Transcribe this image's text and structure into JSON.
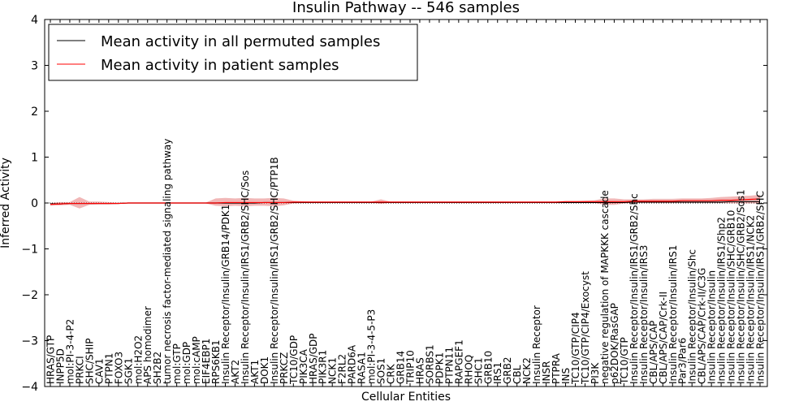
{
  "chart_data": {
    "type": "line",
    "title": "Insulin Pathway -- 546 samples",
    "xlabel": "Cellular Entities",
    "ylabel": "Inferred Activity",
    "ylim": [
      -4,
      4
    ],
    "yticks": [
      4,
      3,
      2,
      1,
      0,
      -1,
      -2,
      -3,
      -4
    ],
    "yticklabels": [
      "4",
      "3",
      "2",
      "1",
      "0",
      "−1",
      "−2",
      "−3",
      "−4"
    ],
    "grid": false,
    "legend_position": "top-left",
    "reference_line": 0,
    "categories": [
      "HRAS/GTP",
      "INPP5D",
      "mol:PI-3-4-P2",
      "PRKCI",
      "SHC/SHIP",
      "CAV1",
      "PTPN1",
      "FOXO3",
      "SGK1",
      "mol:H2O2",
      "APS homodimer",
      "SH2B2",
      "tumor necrosis factor-mediated signaling pathway",
      "mol:GTP",
      "mol:GDP",
      "mol:cAMP",
      "EIF4EBP1",
      "RPS6KB1",
      "Insulin Receptor/Insulin/GRB14/PDK1",
      "AKT2",
      "Insulin Receptor/Insulin/IRS1/GRB2/SHC/Sos",
      "AKT1",
      "DOK1",
      "Insulin Receptor/Insulin/IRS1/GRB2/SHC/PTP1B",
      "PRKCZ",
      "TC10/GDP",
      "PIK3CA",
      "HRAS/GDP",
      "PIK3R1",
      "NCK1",
      "F2RL2",
      "PARD6A",
      "RASA1",
      "mol:PI-3-4-5-P3",
      "SOS1",
      "CRK",
      "GRB14",
      "TRIP10",
      "HRAS",
      "SORBS1",
      "PDPK1",
      "PTPN11",
      "RAPGEF1",
      "RHOQ",
      "SHC1",
      "GRB10",
      "IRS1",
      "GRB2",
      "CBL",
      "NCK2",
      "Insulin Receptor",
      "INSR",
      "PTPRA",
      "INS",
      "TC10/GTP/CIP4",
      "TC10/GTP/CIP4/Exocyst",
      "PI3K",
      "negative regulation of MAPKKK cascade",
      "p62DOK/RasGAP",
      "TC10/GTP",
      "Insulin Receptor/Insulin/IRS1/GRB2/Shc",
      "Insulin Receptor/Insulin/IRS3",
      "CBL/APS/CAP",
      "CBL/APS/CAP/Crk-II",
      "Insulin Receptor/Insulin/IRS1",
      "Par3/Par6",
      "Insulin Receptor/Insulin/Shc",
      "CBL/APS/CAP/Crk-II/C3G",
      "Insulin Receptor/Insulin",
      "Insulin Receptor/Insulin/IRS1/Shp2",
      "Insulin Receptor/Insulin/SHC/GRB10",
      "Insulin Receptor/Insulin/SHC/GRB2/Sos1",
      "Insulin Receptor/Insulin/IRS1/NCK2",
      "Insulin Receptor/Insulin/IRS1/GRB2/SHC"
    ],
    "series": [
      {
        "name": "Mean activity in all permuted samples",
        "color": "#000000",
        "values": [
          -0.02,
          -0.02,
          -0.01,
          -0.01,
          -0.01,
          -0.01,
          -0.01,
          -0.01,
          0.0,
          0.0,
          0.0,
          0.0,
          0.0,
          0.0,
          0.0,
          0.0,
          0.0,
          0.0,
          0.0,
          0.0,
          0.0,
          0.0,
          0.01,
          0.01,
          0.01,
          0.01,
          0.01,
          0.01,
          0.01,
          0.01,
          0.01,
          0.01,
          0.01,
          0.01,
          0.01,
          0.01,
          0.01,
          0.01,
          0.01,
          0.01,
          0.01,
          0.01,
          0.01,
          0.01,
          0.01,
          0.01,
          0.01,
          0.01,
          0.01,
          0.01,
          0.01,
          0.01,
          0.01,
          0.01,
          0.01,
          0.01,
          0.01,
          0.01,
          0.01,
          0.01,
          0.02,
          0.02,
          0.02,
          0.02,
          0.02,
          0.02,
          0.02,
          0.02,
          0.02,
          0.02,
          0.03,
          0.03,
          0.03,
          0.03
        ]
      },
      {
        "name": "Mean activity in patient samples",
        "color": "#ff0000",
        "values": [
          -0.03,
          -0.02,
          -0.01,
          -0.01,
          -0.01,
          -0.01,
          -0.01,
          -0.01,
          0.0,
          0.0,
          0.0,
          0.0,
          0.0,
          0.0,
          0.0,
          0.0,
          0.0,
          0.0,
          0.01,
          0.01,
          0.01,
          0.01,
          0.01,
          0.01,
          0.01,
          0.02,
          0.02,
          0.02,
          0.02,
          0.02,
          0.02,
          0.02,
          0.02,
          0.02,
          0.02,
          0.02,
          0.02,
          0.02,
          0.02,
          0.02,
          0.02,
          0.02,
          0.02,
          0.02,
          0.02,
          0.02,
          0.02,
          0.02,
          0.02,
          0.02,
          0.02,
          0.02,
          0.02,
          0.03,
          0.03,
          0.03,
          0.03,
          0.03,
          0.03,
          0.03,
          0.04,
          0.04,
          0.04,
          0.04,
          0.04,
          0.05,
          0.05,
          0.05,
          0.05,
          0.06,
          0.06,
          0.07,
          0.08,
          0.09
        ],
        "band_upper": [
          0.0,
          0.02,
          0.02,
          0.13,
          0.03,
          0.03,
          0.02,
          0.01,
          0.01,
          0.01,
          0.01,
          0.01,
          0.01,
          0.01,
          0.01,
          0.01,
          0.01,
          0.1,
          0.11,
          0.1,
          0.11,
          0.1,
          0.1,
          0.11,
          0.1,
          0.05,
          0.04,
          0.03,
          0.03,
          0.03,
          0.03,
          0.03,
          0.03,
          0.03,
          0.08,
          0.03,
          0.03,
          0.03,
          0.03,
          0.03,
          0.03,
          0.03,
          0.03,
          0.03,
          0.03,
          0.03,
          0.03,
          0.03,
          0.03,
          0.03,
          0.03,
          0.03,
          0.03,
          0.04,
          0.04,
          0.05,
          0.06,
          0.1,
          0.1,
          0.08,
          0.08,
          0.08,
          0.09,
          0.09,
          0.09,
          0.1,
          0.1,
          0.1,
          0.11,
          0.13,
          0.14,
          0.15,
          0.16,
          0.18
        ],
        "band_lower": [
          -0.06,
          -0.05,
          -0.04,
          -0.12,
          -0.04,
          -0.03,
          -0.03,
          -0.02,
          -0.01,
          -0.01,
          -0.01,
          -0.01,
          -0.01,
          -0.01,
          -0.01,
          -0.01,
          -0.01,
          -0.06,
          -0.07,
          -0.06,
          -0.07,
          -0.06,
          -0.06,
          -0.07,
          -0.05,
          -0.01,
          0.0,
          0.0,
          0.01,
          0.01,
          0.01,
          0.01,
          0.01,
          0.01,
          -0.02,
          0.01,
          0.01,
          0.01,
          0.01,
          0.01,
          0.01,
          0.01,
          0.01,
          0.01,
          0.01,
          0.01,
          0.01,
          0.01,
          0.01,
          0.01,
          0.01,
          0.01,
          0.01,
          0.01,
          0.01,
          0.0,
          0.0,
          -0.04,
          -0.04,
          -0.01,
          0.0,
          0.0,
          0.0,
          0.0,
          0.0,
          0.0,
          0.0,
          0.0,
          0.0,
          0.0,
          -0.01,
          -0.01,
          -0.01,
          -0.01
        ],
        "band_color": "#e06060",
        "band_opacity": 0.45
      }
    ]
  }
}
